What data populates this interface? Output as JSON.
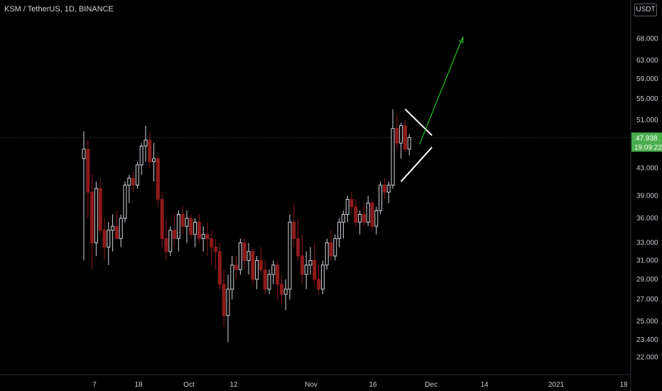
{
  "header": {
    "symbol_title": "KSM / TetherUS, 1D, BINANCE",
    "currency_button": "USDT"
  },
  "colors": {
    "background": "#000000",
    "up_candle": "#d1d4dc",
    "down_candle": "#8e1a1a",
    "axis_text": "#c9ccd4",
    "last_price_line": "#444444",
    "last_price_badge": "#4caf50",
    "arrow": "#1ec41e",
    "pattern_lines": "#ffffff"
  },
  "chart_data": {
    "type": "candlestick",
    "price_scale": "log",
    "y_ticks": [
      "68.000",
      "63.000",
      "59.000",
      "55.000",
      "51.000",
      "43.000",
      "39.000",
      "36.000",
      "33.000",
      "31.000",
      "29.000",
      "27.000",
      "25.000",
      "23.400",
      "22.000"
    ],
    "x_ticks": [
      "7",
      "18",
      "Oct",
      "12",
      "Nov",
      "16",
      "Dec",
      "14",
      "2021",
      "18"
    ],
    "last_price": "47.938",
    "countdown": "19:09:22",
    "candles": [
      [
        44.5,
        49.0,
        31.0,
        46.0
      ],
      [
        46.0,
        47.5,
        36.0,
        39.5
      ],
      [
        39.5,
        42.0,
        30.0,
        33.0
      ],
      [
        33.0,
        41.0,
        31.5,
        40.0
      ],
      [
        40.0,
        41.5,
        34.0,
        34.5
      ],
      [
        34.5,
        36.0,
        31.0,
        32.5
      ],
      [
        32.5,
        35.5,
        30.5,
        34.5
      ],
      [
        34.5,
        36.5,
        32.0,
        35.0
      ],
      [
        35.0,
        37.0,
        33.5,
        33.5
      ],
      [
        33.5,
        36.5,
        32.5,
        36.0
      ],
      [
        36.0,
        41.0,
        35.5,
        40.5
      ],
      [
        40.5,
        42.0,
        38.0,
        41.5
      ],
      [
        41.5,
        42.5,
        39.5,
        40.5
      ],
      [
        40.5,
        44.0,
        40.0,
        43.5
      ],
      [
        43.5,
        47.0,
        42.0,
        46.5
      ],
      [
        46.5,
        50.0,
        44.0,
        47.5
      ],
      [
        47.5,
        49.0,
        43.0,
        44.0
      ],
      [
        44.0,
        47.0,
        41.0,
        44.5
      ],
      [
        44.5,
        45.0,
        37.5,
        38.5
      ],
      [
        38.5,
        39.5,
        32.5,
        33.5
      ],
      [
        33.5,
        36.0,
        31.0,
        32.0
      ],
      [
        32.0,
        35.0,
        31.5,
        34.5
      ],
      [
        34.5,
        36.5,
        32.5,
        33.5
      ],
      [
        33.5,
        37.0,
        32.0,
        36.5
      ],
      [
        36.5,
        37.5,
        34.0,
        35.0
      ],
      [
        35.0,
        37.0,
        33.0,
        36.0
      ],
      [
        36.0,
        36.5,
        33.5,
        34.0
      ],
      [
        34.0,
        36.0,
        32.5,
        35.5
      ],
      [
        35.5,
        36.5,
        33.0,
        33.5
      ],
      [
        33.5,
        35.0,
        32.0,
        34.0
      ],
      [
        34.0,
        35.5,
        31.5,
        33.5
      ],
      [
        33.5,
        34.5,
        30.5,
        32.5
      ],
      [
        32.5,
        33.5,
        30.0,
        32.0
      ],
      [
        32.0,
        33.0,
        28.0,
        28.5
      ],
      [
        28.5,
        30.0,
        24.5,
        25.5
      ],
      [
        25.5,
        29.5,
        23.2,
        28.0
      ],
      [
        28.0,
        31.5,
        27.0,
        30.5
      ],
      [
        30.5,
        31.5,
        29.0,
        30.0
      ],
      [
        30.0,
        33.5,
        29.5,
        33.0
      ],
      [
        33.0,
        33.5,
        30.0,
        31.0
      ],
      [
        31.0,
        33.0,
        29.5,
        32.0
      ],
      [
        32.0,
        32.5,
        28.5,
        29.0
      ],
      [
        29.0,
        31.5,
        28.0,
        31.0
      ],
      [
        31.0,
        32.5,
        29.5,
        30.0
      ],
      [
        30.0,
        31.0,
        27.5,
        28.0
      ],
      [
        28.0,
        30.0,
        27.5,
        29.5
      ],
      [
        29.5,
        31.0,
        28.5,
        30.5
      ],
      [
        30.5,
        31.0,
        27.0,
        28.5
      ],
      [
        28.5,
        29.5,
        26.5,
        27.5
      ],
      [
        27.5,
        29.0,
        26.0,
        28.0
      ],
      [
        28.0,
        36.5,
        27.0,
        35.5
      ],
      [
        35.5,
        38.0,
        32.5,
        33.5
      ],
      [
        33.5,
        36.0,
        31.0,
        31.5
      ],
      [
        31.5,
        34.0,
        28.5,
        29.5
      ],
      [
        29.5,
        32.0,
        28.0,
        30.5
      ],
      [
        30.5,
        32.5,
        29.5,
        31.0
      ],
      [
        31.0,
        33.0,
        28.5,
        29.0
      ],
      [
        29.0,
        30.5,
        27.5,
        28.0
      ],
      [
        28.0,
        31.0,
        27.5,
        30.5
      ],
      [
        30.5,
        33.5,
        30.0,
        33.0
      ],
      [
        33.0,
        34.5,
        31.0,
        31.5
      ],
      [
        31.5,
        34.0,
        31.0,
        33.5
      ],
      [
        33.5,
        36.0,
        32.5,
        35.5
      ],
      [
        35.5,
        37.0,
        33.5,
        36.5
      ],
      [
        36.5,
        39.0,
        35.5,
        38.5
      ],
      [
        38.5,
        39.5,
        36.5,
        37.5
      ],
      [
        37.5,
        38.5,
        35.0,
        35.5
      ],
      [
        35.5,
        37.0,
        34.0,
        36.5
      ],
      [
        36.5,
        38.0,
        35.0,
        35.5
      ],
      [
        35.5,
        39.0,
        35.0,
        38.0
      ],
      [
        38.0,
        38.5,
        34.5,
        35.0
      ],
      [
        35.0,
        37.5,
        34.0,
        37.0
      ],
      [
        37.0,
        41.0,
        36.5,
        40.5
      ],
      [
        40.5,
        41.5,
        38.5,
        39.5
      ],
      [
        39.5,
        41.0,
        38.0,
        40.5
      ],
      [
        40.5,
        53.0,
        40.0,
        49.5
      ],
      [
        49.5,
        52.0,
        46.0,
        47.0
      ],
      [
        47.0,
        50.5,
        44.5,
        50.0
      ],
      [
        50.0,
        51.0,
        45.5,
        46.0
      ],
      [
        46.0,
        48.5,
        45.0,
        47.94
      ]
    ],
    "annotations": {
      "triangle_upper": [
        [
          78,
          53.0
        ],
        [
          84.5,
          48.3
        ]
      ],
      "triangle_lower": [
        [
          77,
          41.0
        ],
        [
          84.5,
          46.3
        ]
      ],
      "arrow": [
        [
          81.5,
          46.8
        ],
        [
          92,
          68.5
        ]
      ]
    }
  }
}
